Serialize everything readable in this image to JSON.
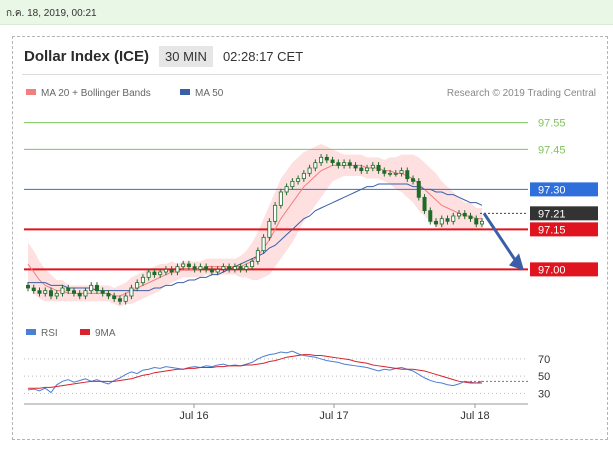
{
  "topbar": {
    "timestamp": "ก.ค. 18, 2019, 00:21"
  },
  "header": {
    "title": "Dollar Index (ICE)",
    "timeframe": "30 MIN",
    "time": "02:28:17 CET"
  },
  "colors": {
    "ma20": "#f08080",
    "band": "#ffd6d6",
    "ma50": "#3a5fa8",
    "candle": "#1f6b2a",
    "green_level": "#7ec55b",
    "blue_level": "#2f6fdc",
    "red_level": "#e0141e",
    "dark_label": "#333333",
    "rsi": "#4a7fd4",
    "rsi_ma": "#d9232d"
  },
  "chart_data": [
    {
      "type": "line",
      "title": "Dollar Index (ICE)",
      "legend": {
        "ma20": "MA 20 + Bollinger Bands",
        "ma50": "MA 50",
        "placement": "top-left"
      },
      "source": "Research © 2019 Trading Central",
      "x_ticks": [
        "Jul 16",
        "Jul 17",
        "Jul 18"
      ],
      "ylim": [
        96.87,
        97.62
      ],
      "levels": [
        {
          "value": 97.55,
          "label": "97.55",
          "style": "green"
        },
        {
          "value": 97.45,
          "label": "97.45",
          "style": "green"
        },
        {
          "value": 97.3,
          "label": "97.30",
          "style": "blue"
        },
        {
          "value": 97.21,
          "label": "97.21",
          "style": "dark"
        },
        {
          "value": 97.15,
          "label": "97.15",
          "style": "red"
        },
        {
          "value": 97.0,
          "label": "97.00",
          "style": "red"
        }
      ],
      "price": [
        96.93,
        96.92,
        96.91,
        96.92,
        96.9,
        96.91,
        96.93,
        96.92,
        96.91,
        96.9,
        96.92,
        96.94,
        96.92,
        96.91,
        96.9,
        96.89,
        96.88,
        96.9,
        96.93,
        96.95,
        96.97,
        96.99,
        96.98,
        96.99,
        97.0,
        96.99,
        97.01,
        97.02,
        97.01,
        97.0,
        97.01,
        97.0,
        96.99,
        97.0,
        97.01,
        97.0,
        97.01,
        97.0,
        97.01,
        97.03,
        97.07,
        97.12,
        97.18,
        97.24,
        97.29,
        97.31,
        97.33,
        97.34,
        97.36,
        97.38,
        97.4,
        97.42,
        97.41,
        97.4,
        97.39,
        97.4,
        97.39,
        97.38,
        97.37,
        97.38,
        97.39,
        97.37,
        97.36,
        97.36,
        97.36,
        97.37,
        97.34,
        97.33,
        97.27,
        97.22,
        97.18,
        97.17,
        97.19,
        97.18,
        97.2,
        97.21,
        97.2,
        97.19,
        97.17,
        97.18
      ],
      "ma20": [
        97.02,
        96.99,
        96.96,
        96.94,
        96.93,
        96.92,
        96.92,
        96.91,
        96.91,
        96.91,
        96.91,
        96.91,
        96.91,
        96.91,
        96.91,
        96.9,
        96.9,
        96.91,
        96.92,
        96.93,
        96.94,
        96.95,
        96.96,
        96.97,
        96.98,
        96.99,
        96.99,
        97.0,
        97.0,
        97.0,
        97.0,
        97.01,
        97.01,
        97.01,
        97.01,
        97.01,
        97.01,
        97.01,
        97.02,
        97.03,
        97.05,
        97.08,
        97.11,
        97.15,
        97.19,
        97.22,
        97.25,
        97.28,
        97.31,
        97.33,
        97.35,
        97.37,
        97.38,
        97.39,
        97.39,
        97.39,
        97.39,
        97.39,
        97.39,
        97.38,
        97.38,
        97.38,
        97.37,
        97.37,
        97.36,
        97.36,
        97.35,
        97.34,
        97.32,
        97.3,
        97.28,
        97.26,
        97.24,
        97.23,
        97.22,
        97.21,
        97.2,
        97.2,
        97.19,
        97.19
      ],
      "band_width": [
        0.08,
        0.08,
        0.07,
        0.06,
        0.05,
        0.04,
        0.04,
        0.03,
        0.03,
        0.03,
        0.03,
        0.03,
        0.03,
        0.03,
        0.03,
        0.03,
        0.04,
        0.04,
        0.05,
        0.05,
        0.05,
        0.05,
        0.05,
        0.05,
        0.04,
        0.04,
        0.03,
        0.03,
        0.03,
        0.03,
        0.03,
        0.03,
        0.03,
        0.03,
        0.03,
        0.03,
        0.03,
        0.04,
        0.05,
        0.07,
        0.09,
        0.11,
        0.13,
        0.14,
        0.15,
        0.15,
        0.15,
        0.14,
        0.13,
        0.12,
        0.11,
        0.1,
        0.08,
        0.06,
        0.05,
        0.04,
        0.04,
        0.04,
        0.04,
        0.04,
        0.04,
        0.04,
        0.04,
        0.05,
        0.06,
        0.07,
        0.08,
        0.09,
        0.1,
        0.1,
        0.1,
        0.1,
        0.09,
        0.08,
        0.07,
        0.06,
        0.05,
        0.05,
        0.04,
        0.04
      ],
      "ma50": [
        96.95,
        96.95,
        96.95,
        96.95,
        96.94,
        96.94,
        96.94,
        96.93,
        96.93,
        96.93,
        96.93,
        96.93,
        96.92,
        96.92,
        96.92,
        96.92,
        96.92,
        96.92,
        96.92,
        96.92,
        96.92,
        96.92,
        96.93,
        96.93,
        96.94,
        96.94,
        96.95,
        96.95,
        96.96,
        96.96,
        96.97,
        96.97,
        96.98,
        96.98,
        96.99,
        97.0,
        97.01,
        97.02,
        97.03,
        97.04,
        97.05,
        97.06,
        97.08,
        97.09,
        97.11,
        97.13,
        97.15,
        97.17,
        97.19,
        97.2,
        97.22,
        97.23,
        97.24,
        97.25,
        97.26,
        97.27,
        97.28,
        97.29,
        97.3,
        97.31,
        97.31,
        97.32,
        97.32,
        97.32,
        97.32,
        97.32,
        97.32,
        97.31,
        97.31,
        97.3,
        97.3,
        97.29,
        97.29,
        97.28,
        97.28,
        97.27,
        97.26,
        97.25,
        97.25,
        97.24
      ],
      "forecast": [
        97.21,
        97.0
      ]
    },
    {
      "type": "line",
      "legend": {
        "rsi": "RSI",
        "ma9": "9MA",
        "placement": "top-left"
      },
      "ylim": [
        20,
        85
      ],
      "y_ticks": [
        70,
        50,
        30
      ],
      "rsi": [
        34,
        35,
        33,
        36,
        31,
        40,
        44,
        46,
        43,
        45,
        47,
        44,
        46,
        43,
        41,
        45,
        48,
        52,
        55,
        53,
        57,
        58,
        60,
        59,
        61,
        60,
        59,
        58,
        60,
        61,
        60,
        62,
        61,
        63,
        64,
        62,
        63,
        62,
        64,
        66,
        70,
        73,
        75,
        76,
        78,
        77,
        79,
        76,
        74,
        73,
        72,
        70,
        68,
        67,
        66,
        64,
        63,
        62,
        61,
        60,
        58,
        56,
        58,
        57,
        59,
        60,
        58,
        56,
        52,
        48,
        45,
        43,
        42,
        40,
        39,
        41,
        44,
        43,
        42,
        44
      ],
      "ma9": [
        36,
        36,
        36,
        37,
        37,
        38,
        39,
        40,
        41,
        42,
        43,
        44,
        44,
        44,
        44,
        44,
        45,
        46,
        47,
        49,
        51,
        52,
        54,
        55,
        56,
        57,
        58,
        58,
        59,
        59,
        60,
        60,
        60,
        61,
        61,
        62,
        62,
        62,
        63,
        63,
        64,
        65,
        67,
        68,
        70,
        72,
        73,
        74,
        75,
        75,
        74,
        74,
        73,
        72,
        71,
        70,
        69,
        67,
        66,
        65,
        63,
        62,
        61,
        60,
        59,
        58,
        58,
        58,
        57,
        56,
        54,
        52,
        50,
        48,
        46,
        44,
        43,
        42,
        42,
        42
      ]
    }
  ]
}
